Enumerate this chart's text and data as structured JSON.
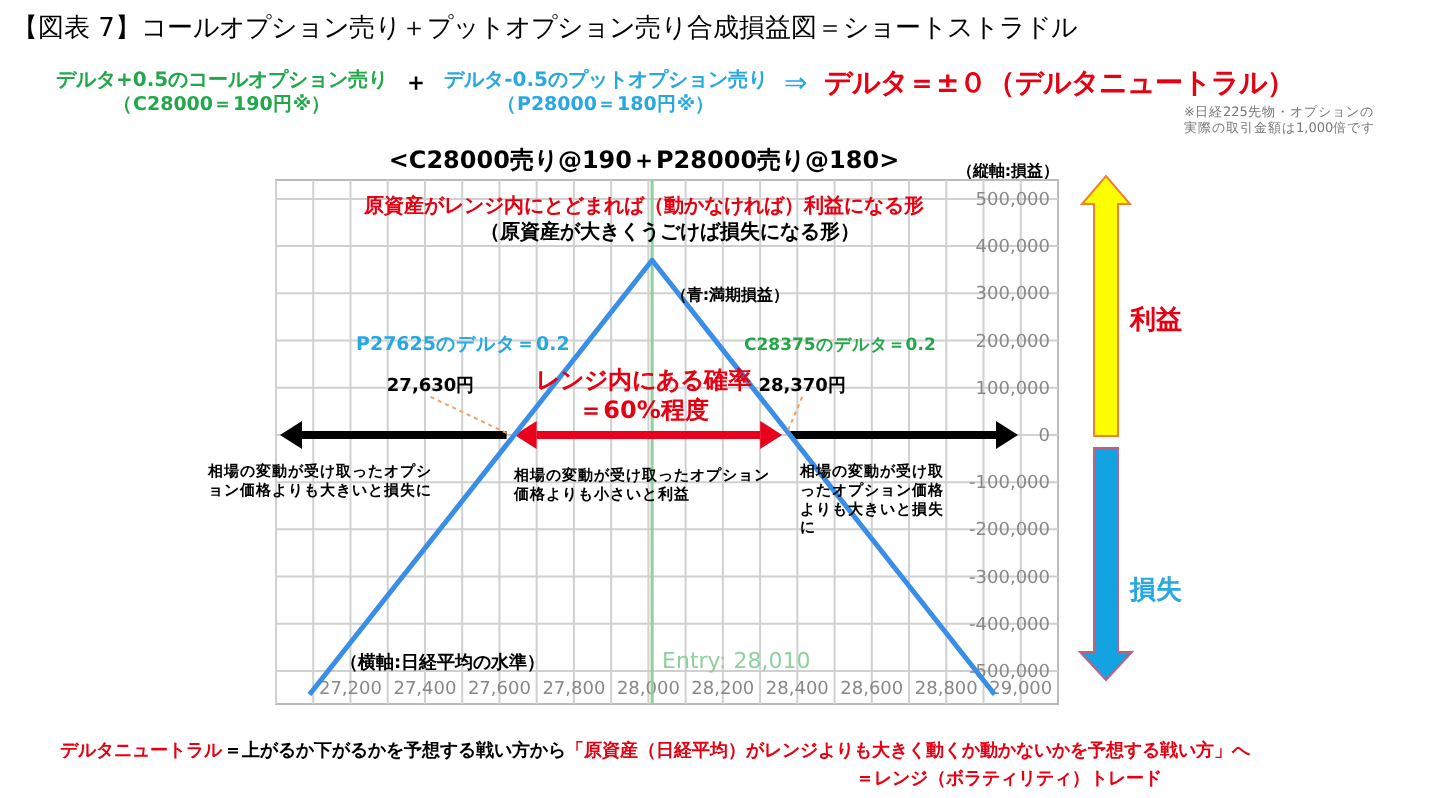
{
  "chart_data": {
    "type": "line",
    "title": "【図表 7】コールオプション売り＋プットオプション売り合成損益図＝ショートストラドル",
    "subtitle": "<C28000売り@190＋P28000売り@180>",
    "ylabel": "（縦軸:損益）",
    "xlabel": "（横軸:日経平均の水準）",
    "xlim": [
      27000,
      29100
    ],
    "xticks": [
      {
        "value": 27000,
        "label": null
      },
      {
        "value": 27100,
        "label": null
      },
      {
        "value": 27200,
        "label": "27,200"
      },
      {
        "value": 27300,
        "label": null
      },
      {
        "value": 27400,
        "label": "27,400"
      },
      {
        "value": 27500,
        "label": null
      },
      {
        "value": 27600,
        "label": "27,600"
      },
      {
        "value": 27700,
        "label": null
      },
      {
        "value": 27800,
        "label": "27,800"
      },
      {
        "value": 27900,
        "label": null
      },
      {
        "value": 28000,
        "label": "28,000"
      },
      {
        "value": 28100,
        "label": null
      },
      {
        "value": 28200,
        "label": "28,200"
      },
      {
        "value": 28300,
        "label": null
      },
      {
        "value": 28400,
        "label": "28,400"
      },
      {
        "value": 28500,
        "label": null
      },
      {
        "value": 28600,
        "label": "28,600"
      },
      {
        "value": 28700,
        "label": null
      },
      {
        "value": 28800,
        "label": "28,800"
      },
      {
        "value": 28900,
        "label": null
      },
      {
        "value": 29000,
        "label": "29,000"
      }
    ],
    "ylim": [
      -570000,
      540000
    ],
    "yticks": [
      {
        "value": -500000,
        "label": "-500,000"
      },
      {
        "value": -400000,
        "label": "-400,000"
      },
      {
        "value": -300000,
        "label": "-300,000"
      },
      {
        "value": -200000,
        "label": "-200,000"
      },
      {
        "value": -100000,
        "label": "-100,000"
      },
      0,
      {
        "value": 100000,
        "label": "100,000"
      },
      {
        "value": 200000,
        "label": "200,000"
      },
      {
        "value": 300000,
        "label": "300,000"
      },
      {
        "value": 400000,
        "label": "400,000"
      },
      {
        "value": 500000,
        "label": "500,000"
      }
    ],
    "grid": true,
    "marker": "none",
    "line_style": "solid",
    "series": [
      {
        "color": "#3a8ee6",
        "x": [
          27090,
          28010,
          28930
        ],
        "values": [
          -550000,
          370000,
          -550000
        ]
      }
    ],
    "ref_lines": [
      {
        "axis": "x",
        "value": 28010,
        "label": "Entry: 28,010",
        "color": "#8fd19e"
      }
    ],
    "annotations": [
      "デルタ+0.5のコールオプション売り",
      "（C28000＝190円※）",
      "＋",
      "デルタ-0.5のプットオプション売り",
      "（P28000＝180円※）",
      "⇒",
      "デルタ＝±０（デルタニュートラル）",
      "※日経225先物・オプションの実際の取引金額は1,000倍です",
      "原資産がレンジ内にとどまれば（動かなければ）利益になる形",
      "（原資産が大きくうごけば損失になる形）",
      "（青:満期損益）",
      "P27625のデルタ＝0.2",
      "C28375のデルタ＝0.2",
      {
        "text": "27,630円",
        "x": 27630,
        "y": 0
      },
      {
        "text": "28,370円",
        "x": 28370,
        "y": 0
      },
      "レンジ内にある確率＝60%程度",
      "相場の変動が受け取ったオプション価格よりも大きいと損失に",
      "相場の変動が受け取ったオプション価格よりも小さいと利益",
      "相場の変動が受け取ったオプション価格よりも大きいと損失に",
      "利益",
      "損失",
      "デルタニュートラル",
      "＝上がるか下がるかを予想する戦い方から",
      "「原資産（日経平均）がレンジよりも大きく動くか動かないかを予想する戦い方」へ",
      "＝レンジ（ボラティリティ）トレード"
    ]
  }
}
